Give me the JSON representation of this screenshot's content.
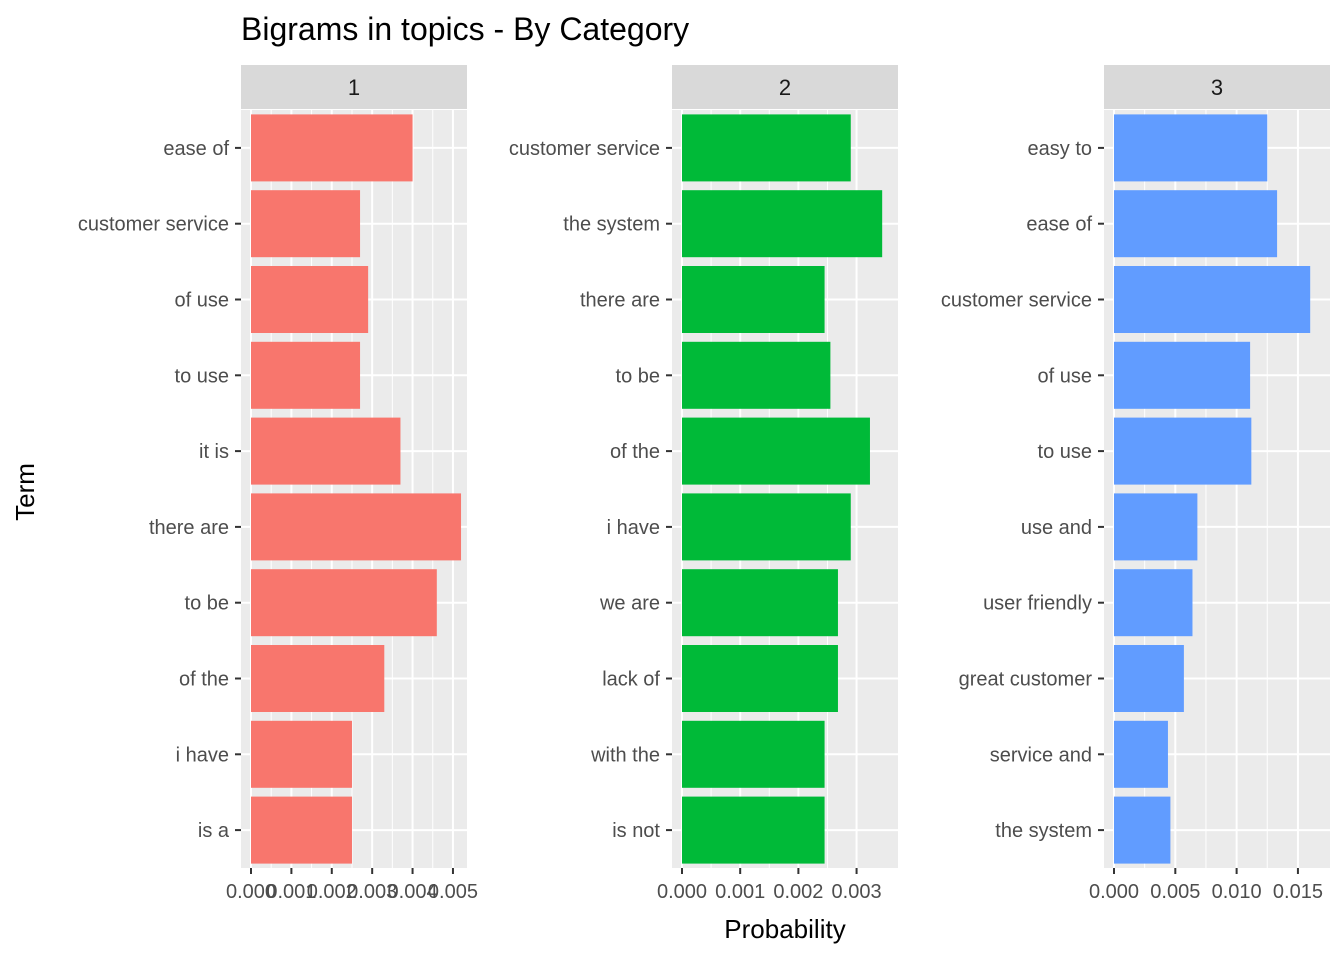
{
  "chart_data": {
    "type": "bar",
    "orientation": "horizontal",
    "title": "Bigrams in topics - By Category",
    "xlabel": "Probability",
    "ylabel": "Term",
    "grid": true,
    "legend": "none",
    "facets": [
      {
        "strip": "1",
        "color": "#F8766D",
        "xlim": [
          0,
          0.0051
        ],
        "ticks": [
          0,
          0.001,
          0.002,
          0.003,
          0.004,
          0.005
        ],
        "tick_labels": [
          "0.000",
          "0.001",
          "0.002",
          "0.003",
          "0.004",
          "0.005"
        ],
        "categories": [
          "ease of",
          "customer service",
          "of use",
          "to use",
          "it is",
          "there are",
          "to be",
          "of the",
          "i have",
          "is a"
        ],
        "values": [
          0.004,
          0.0027,
          0.0029,
          0.0027,
          0.0037,
          0.0052,
          0.0046,
          0.0033,
          0.0025,
          0.0025
        ]
      },
      {
        "strip": "2",
        "color": "#00BA38",
        "xlim": [
          0,
          0.00354
        ],
        "ticks": [
          0,
          0.001,
          0.002,
          0.003
        ],
        "tick_labels": [
          "0.000",
          "0.001",
          "0.002",
          "0.003"
        ],
        "categories": [
          "customer service",
          "the system",
          "there are",
          "to be",
          "of the",
          "i have",
          "we are",
          "lack of",
          "with the",
          "is not"
        ],
        "values": [
          0.0029,
          0.00344,
          0.00245,
          0.00255,
          0.00323,
          0.0029,
          0.00268,
          0.00268,
          0.00245,
          0.00245
        ]
      },
      {
        "strip": "3",
        "color": "#619CFF",
        "xlim": [
          0,
          0.0168
        ],
        "ticks": [
          0,
          0.005,
          0.01,
          0.015
        ],
        "tick_labels": [
          "0.000",
          "0.005",
          "0.010",
          "0.015"
        ],
        "categories": [
          "easy to",
          "ease of",
          "customer service",
          "of use",
          "to use",
          "use and",
          "user friendly",
          "great customer",
          "service and",
          "the system"
        ],
        "values": [
          0.0125,
          0.0133,
          0.016,
          0.0111,
          0.0112,
          0.0068,
          0.0064,
          0.0057,
          0.0044,
          0.0046
        ]
      }
    ]
  }
}
